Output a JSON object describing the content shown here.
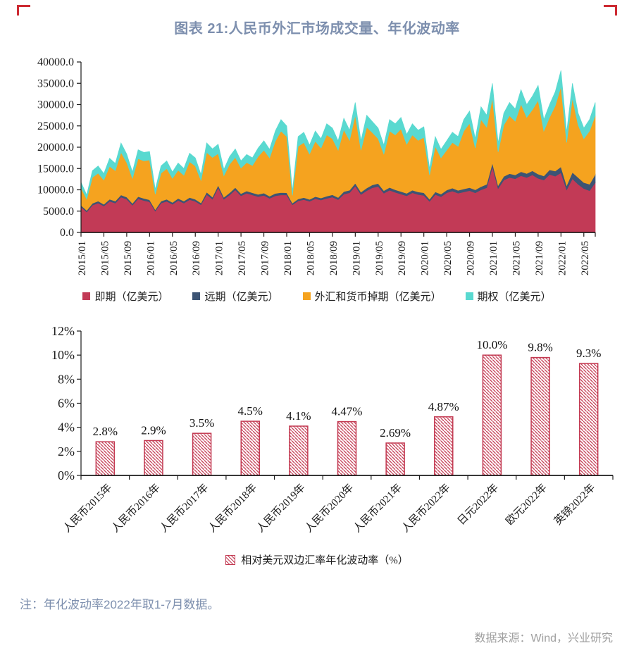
{
  "title": "图表 21:人民币外汇市场成交量、年化波动率",
  "note": "注：年化波动率2022年取1-7月数据。",
  "source": "数据来源：Wind，兴业研究",
  "colors": {
    "title_text": "#7d8fae",
    "note_text": "#7d8fae",
    "source_text": "#a0a0a0",
    "axis": "#1c1c1c",
    "corner_mark": "#cd2b33",
    "spot": "#c23a56",
    "forward": "#3d5474",
    "swap": "#f5a31f",
    "option": "#59d9d0",
    "bar": "#c33a52"
  },
  "chart_data": [
    {
      "type": "area",
      "stacked": true,
      "title": "人民币外汇市场成交量",
      "x_frequency": "monthly",
      "x_start": "2015/01",
      "x_end": "2022/07",
      "x_tick_labels": [
        "2015/01",
        "2015/05",
        "2015/09",
        "2016/01",
        "2016/05",
        "2016/09",
        "2017/01",
        "2017/05",
        "2017/09",
        "2018/01",
        "2018/05",
        "2018/09",
        "2019/01",
        "2019/05",
        "2019/09",
        "2020/01",
        "2020/05",
        "2020/09",
        "2021/01",
        "2021/05",
        "2021/09",
        "2022/01",
        "2022/05"
      ],
      "x_tick_step_months": 4,
      "y_ticks": [
        "0.0",
        "5000.0",
        "10000.0",
        "15000.0",
        "20000.0",
        "25000.0",
        "30000.0",
        "35000.0",
        "40000.0"
      ],
      "y_tick_step": 5000,
      "ylim": [
        0,
        40000
      ],
      "grid": false,
      "legend_position": "bottom",
      "series": [
        {
          "name": "即期（亿美元）",
          "color": "#c23a56",
          "values": [
            6000,
            4800,
            6400,
            6900,
            6200,
            7300,
            6900,
            8300,
            7800,
            6400,
            7900,
            7500,
            7200,
            5000,
            6900,
            7300,
            6600,
            7500,
            6900,
            7700,
            7300,
            6500,
            8900,
            7800,
            10500,
            7800,
            8800,
            10000,
            8600,
            9200,
            8800,
            8400,
            8700,
            8000,
            8600,
            8800,
            8800,
            6500,
            7400,
            7700,
            7300,
            7900,
            7600,
            8000,
            8300,
            7700,
            9000,
            9300,
            10900,
            8900,
            9800,
            10500,
            10800,
            9200,
            9900,
            9400,
            9000,
            8600,
            9300,
            8900,
            8700,
            7300,
            8900,
            8400,
            9300,
            9700,
            9200,
            9500,
            9800,
            9300,
            10000,
            10500,
            15400,
            10300,
            12300,
            12900,
            12600,
            13300,
            12900,
            13500,
            12700,
            12300,
            13600,
            13200,
            14000,
            10000,
            12600,
            11300,
            10300,
            9800,
            11700
          ]
        },
        {
          "name": "远期（亿美元）",
          "color": "#3d5474",
          "values": [
            400,
            350,
            420,
            450,
            400,
            480,
            450,
            500,
            480,
            420,
            500,
            480,
            450,
            350,
            450,
            480,
            430,
            480,
            450,
            500,
            480,
            430,
            550,
            500,
            550,
            450,
            500,
            550,
            500,
            520,
            500,
            520,
            540,
            500,
            550,
            560,
            500,
            380,
            450,
            480,
            450,
            500,
            480,
            520,
            540,
            500,
            580,
            600,
            650,
            550,
            620,
            650,
            680,
            600,
            640,
            620,
            600,
            580,
            620,
            600,
            600,
            500,
            620,
            600,
            650,
            700,
            680,
            700,
            720,
            700,
            750,
            800,
            900,
            700,
            850,
            900,
            880,
            950,
            920,
            960,
            980,
            950,
            1100,
            1200,
            1400,
            1000,
            1500,
            1600,
            1400,
            1500,
            1900
          ]
        },
        {
          "name": "外汇和货币掉期（亿美元）",
          "color": "#f5a31f",
          "values": [
            4100,
            2650,
            6080,
            6550,
            5700,
            7720,
            7150,
            10000,
            8120,
            5880,
            8900,
            8820,
            9350,
            3650,
            6550,
            7220,
            5670,
            6620,
            6050,
            8400,
            7820,
            5270,
            9350,
            9300,
            7450,
            5050,
            6700,
            7050,
            6000,
            6680,
            6400,
            8880,
            10060,
            9000,
            12250,
            14440,
            13200,
            1820,
            12350,
            12920,
            10650,
            13000,
            11720,
            14380,
            13160,
            11100,
            14520,
            11700,
            15950,
            9850,
            14280,
            12250,
            10520,
            8600,
            13260,
            12880,
            14700,
            11520,
            12980,
            12100,
            13000,
            5700,
            10680,
            8500,
            9350,
            10700,
            10320,
            13600,
            15080,
            9800,
            15750,
            13400,
            15200,
            7900,
            12050,
            13600,
            12620,
            15850,
            13180,
            14340,
            17320,
            10550,
            12300,
            15300,
            18800,
            10100,
            17400,
            12300,
            10300,
            12500,
            13800
          ]
        },
        {
          "name": "期权（亿美元）",
          "color": "#59d9d0",
          "values": [
            1300,
            1000,
            1600,
            1700,
            1500,
            1900,
            1700,
            2200,
            2000,
            1500,
            2100,
            2000,
            2000,
            1100,
            1700,
            1800,
            1500,
            1700,
            1600,
            2000,
            1900,
            1400,
            2200,
            2000,
            2200,
            1500,
            1800,
            2000,
            1700,
            1900,
            1800,
            2000,
            2200,
            2000,
            2400,
            2700,
            2500,
            1000,
            2300,
            2400,
            2100,
            2400,
            2200,
            2600,
            2500,
            2200,
            2700,
            2400,
            3000,
            2200,
            2800,
            2600,
            2500,
            2100,
            2700,
            2600,
            2700,
            2300,
            2600,
            2400,
            2500,
            1500,
            2300,
            2000,
            2200,
            2400,
            2300,
            2700,
            2900,
            2200,
            3000,
            2800,
            3500,
            2100,
            2800,
            3100,
            2900,
            3400,
            3000,
            3200,
            3500,
            2700,
            3000,
            3300,
            3800,
            2400,
            3500,
            2800,
            2500,
            2700,
            3100
          ]
        }
      ]
    },
    {
      "type": "bar",
      "title": "年化波动率",
      "categories": [
        "人民币2015年",
        "人民币2016年",
        "人民币2017年",
        "人民币2018年",
        "人民币2019年",
        "人民币2020年",
        "人民币2021年",
        "人民币2022年",
        "日元2022年",
        "欧元2022年",
        "英镑2022年"
      ],
      "values": [
        2.8,
        2.9,
        3.5,
        4.5,
        4.1,
        4.47,
        2.69,
        4.87,
        10.0,
        9.8,
        9.3
      ],
      "data_labels": [
        "2.8%",
        "2.9%",
        "3.5%",
        "4.5%",
        "4.1%",
        "4.47%",
        "2.69%",
        "4.87%",
        "10.0%",
        "9.8%",
        "9.3%"
      ],
      "y_ticks": [
        "0%",
        "2%",
        "4%",
        "6%",
        "8%",
        "10%",
        "12%"
      ],
      "y_tick_step": 2,
      "ylim": [
        0,
        12
      ],
      "grid": false,
      "bar_style": "hatched-diagonal",
      "bar_color": "#c33a52",
      "legend": "相对美元双边汇率年化波动率（%）",
      "legend_position": "bottom"
    }
  ]
}
